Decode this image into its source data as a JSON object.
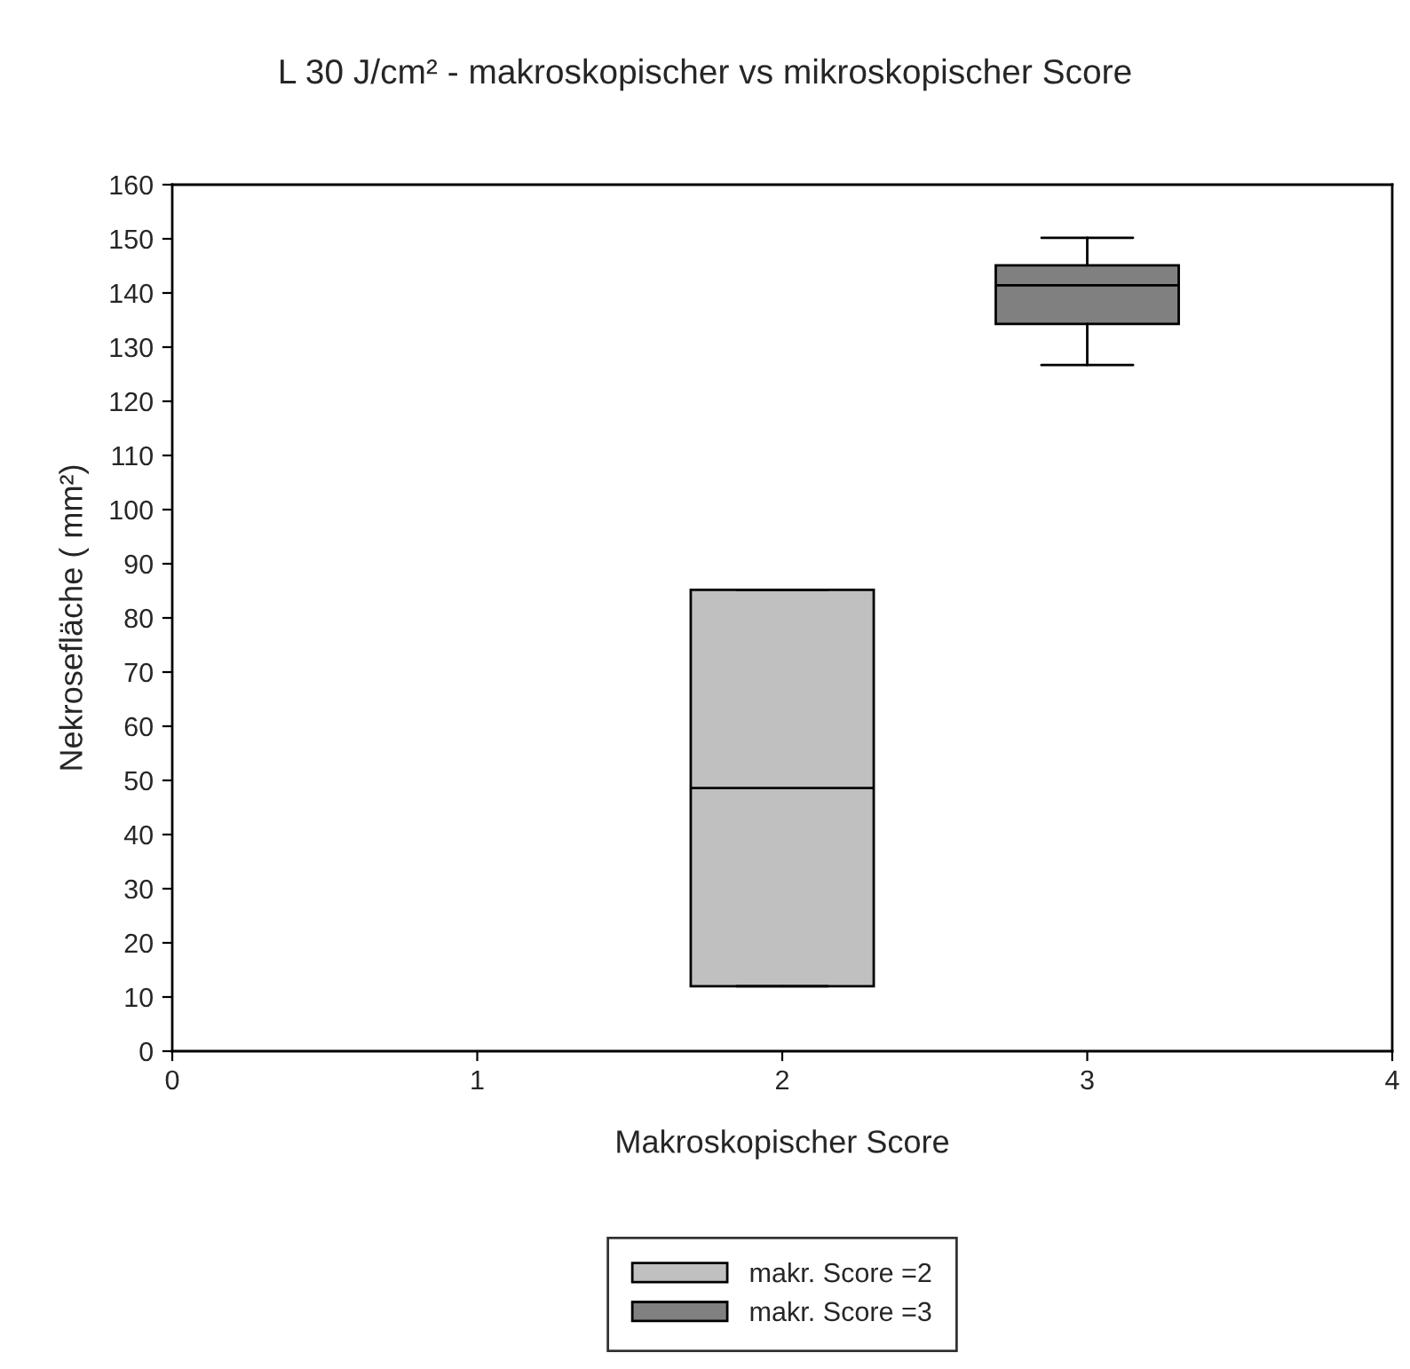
{
  "chart_data": {
    "type": "box",
    "title": "L 30 J/cm² - makroskopischer vs mikroskopischer Score",
    "xlabel": "Makroskopischer Score",
    "ylabel": "Nekrosefläche ( mm²)",
    "xlim": [
      0,
      4
    ],
    "xticks": [
      0,
      1,
      2,
      3,
      4
    ],
    "ylim": [
      0,
      160
    ],
    "yticks": [
      0,
      10,
      20,
      30,
      40,
      50,
      60,
      70,
      80,
      90,
      100,
      110,
      120,
      130,
      140,
      150,
      160
    ],
    "grid": false,
    "legend": "bottom",
    "series": [
      {
        "name": "makr. Score =2",
        "color": "#c0c0c0",
        "x": [
          2
        ],
        "boxes": [
          {
            "low": 12.0,
            "q1": 12.0,
            "median": 48.6,
            "q3": 85.2,
            "high": 85.2
          }
        ]
      },
      {
        "name": "makr. Score =3",
        "color": "#808080",
        "x": [
          3
        ],
        "boxes": [
          {
            "low": 126.7,
            "q1": 134.3,
            "median": 141.4,
            "q3": 145.1,
            "high": 150.2
          }
        ]
      }
    ]
  }
}
